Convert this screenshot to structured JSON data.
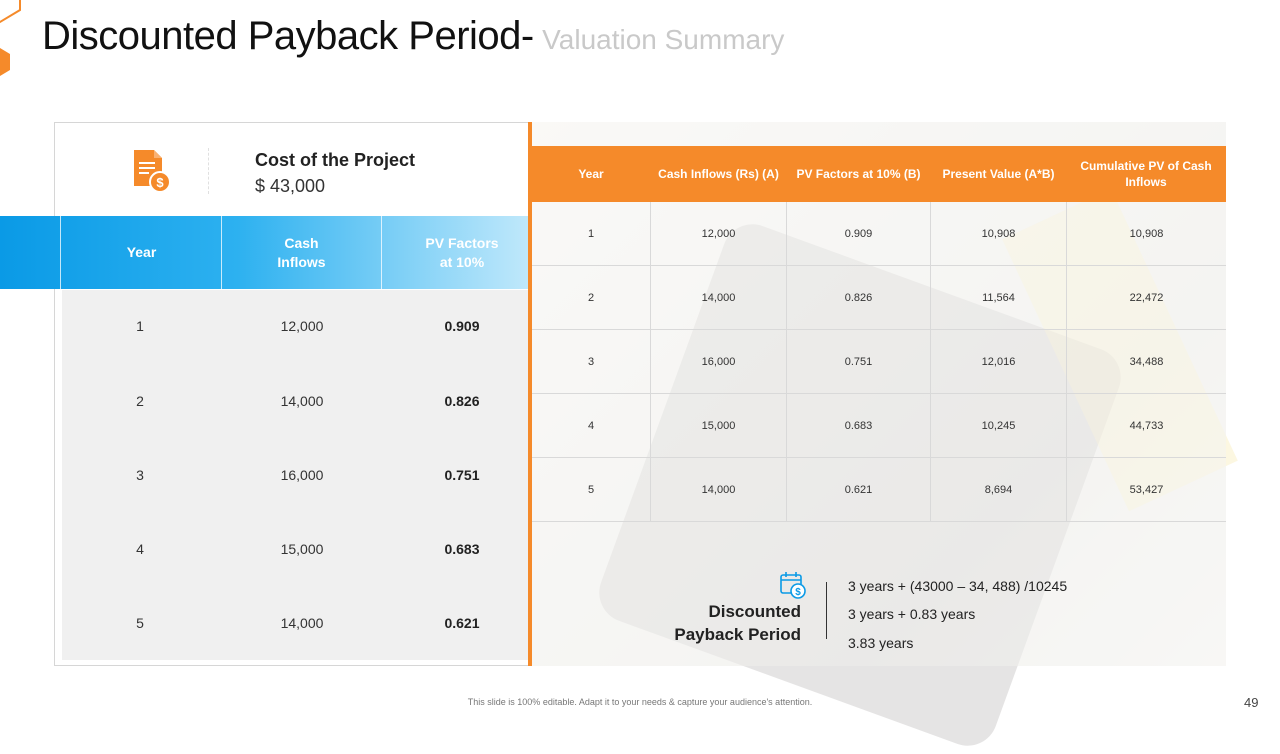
{
  "slide": {
    "title": "Discounted Payback Period-",
    "subtitle": "Valuation Summary",
    "page_number": "49",
    "footer_note": "This slide is 100% editable. Adapt it to your needs & capture your audience's attention."
  },
  "cost": {
    "label": "Cost of the Project",
    "value": "$ 43,000",
    "icon": "document-dollar-icon"
  },
  "left_table": {
    "headers": [
      "Year",
      "Cash\nInflows",
      "PV Factors\nat 10%"
    ],
    "rows": [
      [
        "1",
        "12,000",
        "0.909"
      ],
      [
        "2",
        "14,000",
        "0.826"
      ],
      [
        "3",
        "16,000",
        "0.751"
      ],
      [
        "4",
        "15,000",
        "0.683"
      ],
      [
        "5",
        "14,000",
        "0.621"
      ]
    ]
  },
  "right_table": {
    "headers": [
      "Year",
      "Cash Inflows (Rs) (A)",
      "PV Factors at 10% (B)",
      "Present Value (A*B)",
      "Cumulative PV of Cash Inflows"
    ],
    "rows": [
      [
        "1",
        "12,000",
        "0.909",
        "10,908",
        "10,908"
      ],
      [
        "2",
        "14,000",
        "0.826",
        "11,564",
        "22,472"
      ],
      [
        "3",
        "16,000",
        "0.751",
        "12,016",
        "34,488"
      ],
      [
        "4",
        "15,000",
        "0.683",
        "10,245",
        "44,733"
      ],
      [
        "5",
        "14,000",
        "0.621",
        "8,694",
        "53,427"
      ]
    ]
  },
  "payback": {
    "label_line1": "Discounted",
    "label_line2": "Payback Period",
    "icon": "calendar-dollar-icon",
    "lines": [
      "3 years + (43000 – 34, 488) /10245",
      "3 years + 0.83 years",
      "3.83 years"
    ]
  },
  "colors": {
    "accent_orange": "#f58a2a",
    "accent_blue": "#0a9ae6",
    "subtitle_gray": "#c9c9c9"
  }
}
